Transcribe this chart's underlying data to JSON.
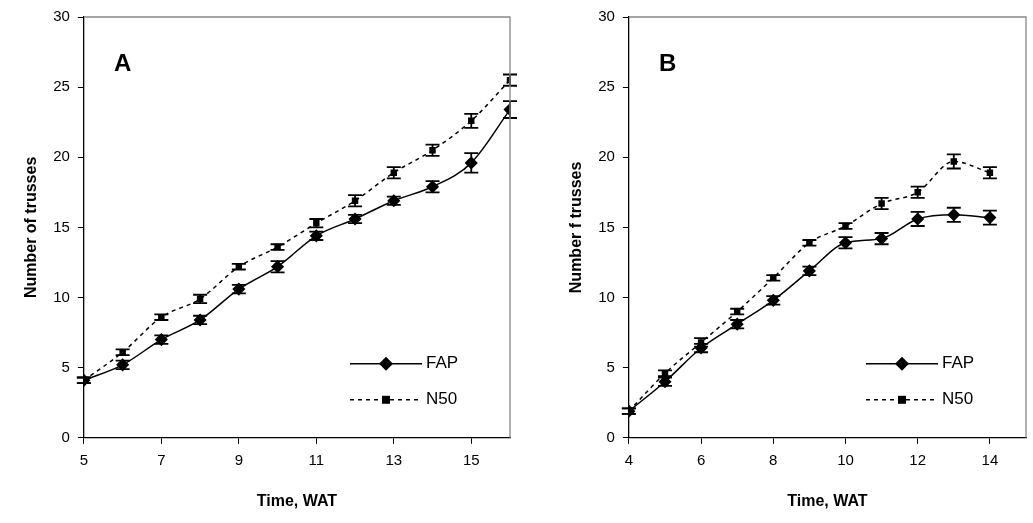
{
  "chart_data": [
    {
      "type": "line",
      "annotations": [
        "A"
      ],
      "xlabel": "Time, WAT",
      "ylabel": "Number of trusses",
      "x": [
        5,
        6,
        7,
        8,
        9,
        10,
        11,
        12,
        13,
        14,
        15,
        16
      ],
      "xlim": [
        5,
        16
      ],
      "xticks": [
        5,
        7,
        9,
        11,
        13,
        15
      ],
      "ylim": [
        0,
        30
      ],
      "yticks": [
        0,
        5,
        10,
        15,
        20,
        25,
        30
      ],
      "grid": false,
      "legend": "bottom right",
      "series": [
        {
          "name": "FAP",
          "color": "#000000",
          "marker": "diamond",
          "line_style": "solid",
          "values": [
            4.1,
            5.2,
            7.0,
            8.4,
            10.6,
            12.2,
            14.4,
            15.6,
            16.9,
            17.9,
            19.6,
            23.4
          ],
          "errors": [
            0.2,
            0.3,
            0.3,
            0.3,
            0.3,
            0.4,
            0.3,
            0.3,
            0.3,
            0.4,
            0.7,
            0.6
          ]
        },
        {
          "name": "N50",
          "color": "#000000",
          "marker": "square",
          "line_style": "dashed",
          "values": [
            4.1,
            6.1,
            8.6,
            9.9,
            12.2,
            13.6,
            15.3,
            16.9,
            18.9,
            20.5,
            22.6,
            25.5
          ],
          "errors": [
            0.2,
            0.2,
            0.2,
            0.3,
            0.2,
            0.2,
            0.3,
            0.4,
            0.4,
            0.4,
            0.5,
            0.4
          ]
        }
      ]
    },
    {
      "type": "line",
      "annotations": [
        "B"
      ],
      "xlabel": "Time, WAT",
      "ylabel": "Number f trusses",
      "x": [
        4,
        5,
        6,
        7,
        8,
        9,
        10,
        11,
        12,
        13,
        14
      ],
      "xlim": [
        4,
        15
      ],
      "xticks": [
        4,
        6,
        8,
        10,
        12,
        14
      ],
      "ylim": [
        0,
        30
      ],
      "yticks": [
        0,
        5,
        10,
        15,
        20,
        25,
        30
      ],
      "grid": false,
      "legend": "bottom right",
      "series": [
        {
          "name": "FAP",
          "color": "#000000",
          "marker": "diamond",
          "line_style": "solid",
          "values": [
            1.9,
            4.0,
            6.4,
            8.1,
            9.8,
            11.9,
            13.9,
            14.2,
            15.6,
            15.9,
            15.7
          ],
          "errors": [
            0.2,
            0.3,
            0.3,
            0.3,
            0.3,
            0.3,
            0.4,
            0.4,
            0.5,
            0.5,
            0.5
          ]
        },
        {
          "name": "N50",
          "color": "#000000",
          "marker": "square",
          "line_style": "dashed",
          "values": [
            1.9,
            4.6,
            6.8,
            9.0,
            11.4,
            13.9,
            15.1,
            16.7,
            17.5,
            19.7,
            18.9
          ],
          "errors": [
            0.2,
            0.2,
            0.3,
            0.2,
            0.2,
            0.2,
            0.2,
            0.4,
            0.4,
            0.5,
            0.4
          ]
        }
      ]
    }
  ]
}
